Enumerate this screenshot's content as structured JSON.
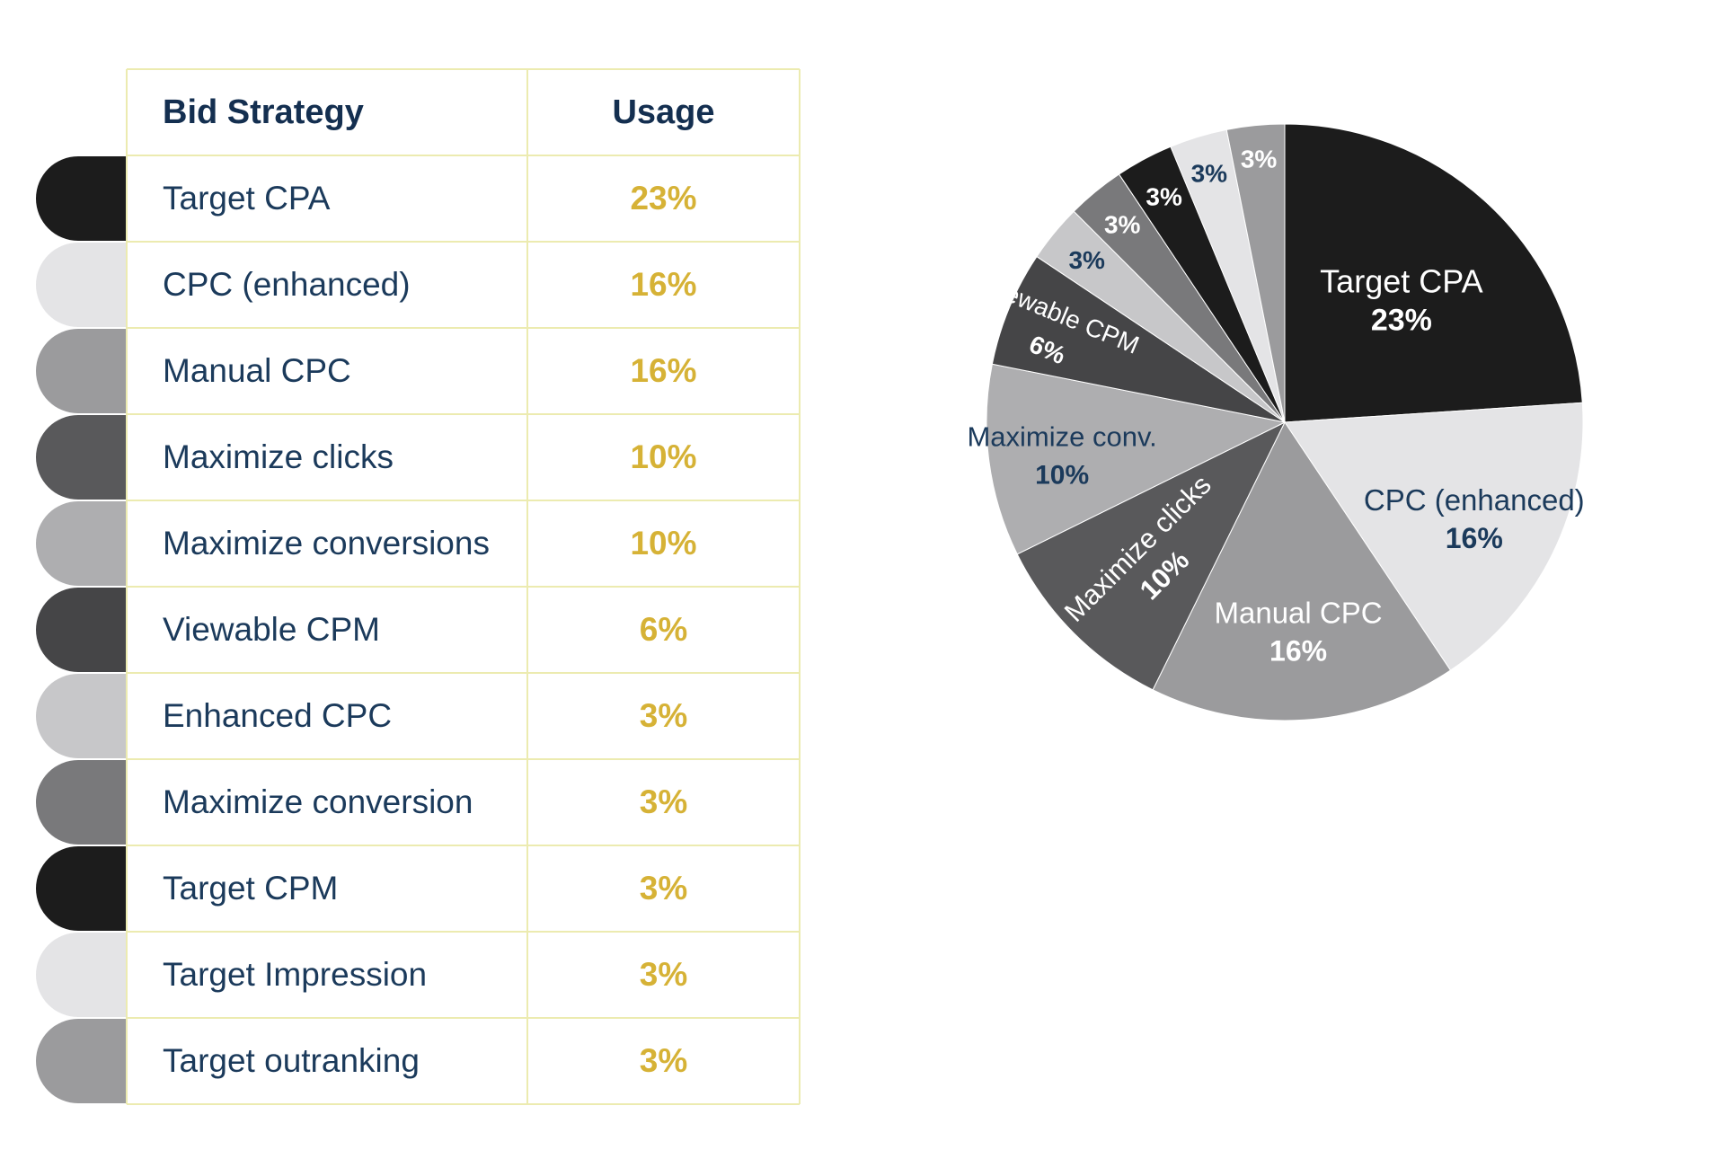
{
  "table": {
    "header": {
      "name": "Bid Strategy",
      "usage": "Usage"
    },
    "rows": [
      {
        "name": "Target CPA",
        "usage": "23%",
        "color": "#1c1c1c"
      },
      {
        "name": "CPC (enhanced)",
        "usage": "16%",
        "color": "#e4e4e6"
      },
      {
        "name": "Manual CPC",
        "usage": "16%",
        "color": "#9b9b9d"
      },
      {
        "name": "Maximize clicks",
        "usage": "10%",
        "color": "#59595b"
      },
      {
        "name": "Maximize conversions",
        "usage": "10%",
        "color": "#aeaeb0"
      },
      {
        "name": "Viewable CPM",
        "usage": "6%",
        "color": "#454547"
      },
      {
        "name": "Enhanced CPC",
        "usage": "3%",
        "color": "#c7c7c9"
      },
      {
        "name": "Maximize conversion",
        "usage": "3%",
        "color": "#79797b"
      },
      {
        "name": "Target CPM",
        "usage": "3%",
        "color": "#1c1c1c"
      },
      {
        "name": "Target Impression",
        "usage": "3%",
        "color": "#e4e4e6"
      },
      {
        "name": "Target outranking",
        "usage": "3%",
        "color": "#9b9b9d"
      }
    ]
  },
  "colors": {
    "usage_text": "#d6b236",
    "header_text": "#142f50",
    "row_text": "#1b3a5b",
    "grid_line": "#ecebb0"
  },
  "chart_data": {
    "type": "pie",
    "start": "12 o'clock, clockwise",
    "slices": [
      {
        "label": "Target CPA",
        "value": 23,
        "value_label": "23%",
        "color": "#1c1c1c",
        "text_color": "#ffffff"
      },
      {
        "label": "CPC (enhanced)",
        "value": 16,
        "value_label": "16%",
        "color": "#e4e4e6",
        "text_color": "#1b3a5b"
      },
      {
        "label": "Manual CPC",
        "value": 16,
        "value_label": "16%",
        "color": "#9b9b9d",
        "text_color": "#ffffff"
      },
      {
        "label": "Maximize clicks",
        "value": 10,
        "value_label": "10%",
        "color": "#59595b",
        "text_color": "#ffffff",
        "rotated": true
      },
      {
        "label": "Maximize conv.",
        "value": 10,
        "value_label": "10%",
        "color": "#aeaeb0",
        "text_color": "#1b3a5b"
      },
      {
        "label": "Viewable CPM",
        "value": 6,
        "value_label": "6%",
        "color": "#454547",
        "text_color": "#ffffff",
        "rotated": true
      },
      {
        "label": "",
        "value": 3,
        "value_label": "3%",
        "color": "#c7c7c9",
        "text_color": "#1b3a5b"
      },
      {
        "label": "",
        "value": 3,
        "value_label": "3%",
        "color": "#79797b",
        "text_color": "#ffffff"
      },
      {
        "label": "",
        "value": 3,
        "value_label": "3%",
        "color": "#1c1c1c",
        "text_color": "#ffffff"
      },
      {
        "label": "",
        "value": 3,
        "value_label": "3%",
        "color": "#e4e4e6",
        "text_color": "#1b3a5b"
      },
      {
        "label": "",
        "value": 3,
        "value_label": "3%",
        "color": "#9b9b9d",
        "text_color": "#ffffff"
      }
    ]
  }
}
